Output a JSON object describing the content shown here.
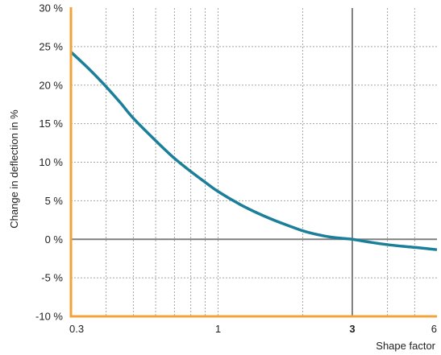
{
  "chart_data": {
    "type": "line",
    "xlabel": "Shape factor",
    "ylabel": "Change in deflection in %",
    "x_scale": "log",
    "xlim": [
      0.3,
      6
    ],
    "ylim": [
      -10,
      30
    ],
    "x_tick_labels": [
      {
        "value": 0.3,
        "label": "0.3",
        "bold": false
      },
      {
        "value": 1,
        "label": "1",
        "bold": false
      },
      {
        "value": 3,
        "label": "3",
        "bold": true
      },
      {
        "value": 6,
        "label": "6",
        "bold": false
      }
    ],
    "y_tick_labels": [
      {
        "value": 30,
        "label": "30 %"
      },
      {
        "value": 25,
        "label": "25 %"
      },
      {
        "value": 20,
        "label": "20 %"
      },
      {
        "value": 15,
        "label": "15 %"
      },
      {
        "value": 10,
        "label": "10 %"
      },
      {
        "value": 5,
        "label": "5 %"
      },
      {
        "value": 0,
        "label": "0 %"
      },
      {
        "value": -5,
        "label": "-5 %"
      },
      {
        "value": -10,
        "label": "-10 %"
      }
    ],
    "x_minor_gridlines": [
      0.4,
      0.5,
      0.6,
      0.7,
      0.8,
      0.9,
      2,
      4,
      5
    ],
    "y_gridlines": [
      -5,
      5,
      10,
      15,
      20,
      25
    ],
    "reference_lines": {
      "x": 3,
      "y": 0
    },
    "grid": true,
    "series": [
      {
        "x": [
          0.3,
          0.35,
          0.4,
          0.45,
          0.5,
          0.6,
          0.7,
          0.8,
          0.9,
          1.0,
          1.2,
          1.4,
          1.6,
          1.8,
          2.0,
          2.2,
          2.5,
          2.8,
          3.0,
          3.5,
          4.0,
          4.5,
          5.0,
          5.5,
          6.0
        ],
        "y": [
          24.3,
          22.0,
          19.8,
          17.7,
          15.7,
          12.8,
          10.5,
          8.8,
          7.4,
          6.2,
          4.5,
          3.3,
          2.4,
          1.7,
          1.1,
          0.7,
          0.3,
          0.1,
          0.0,
          -0.4,
          -0.7,
          -0.9,
          -1.05,
          -1.2,
          -1.35
        ]
      }
    ]
  },
  "colors": {
    "frame": "#f2a33a",
    "curve": "#1b7f9a",
    "reference_line": "#808080",
    "grid": "#a6a6a6"
  }
}
